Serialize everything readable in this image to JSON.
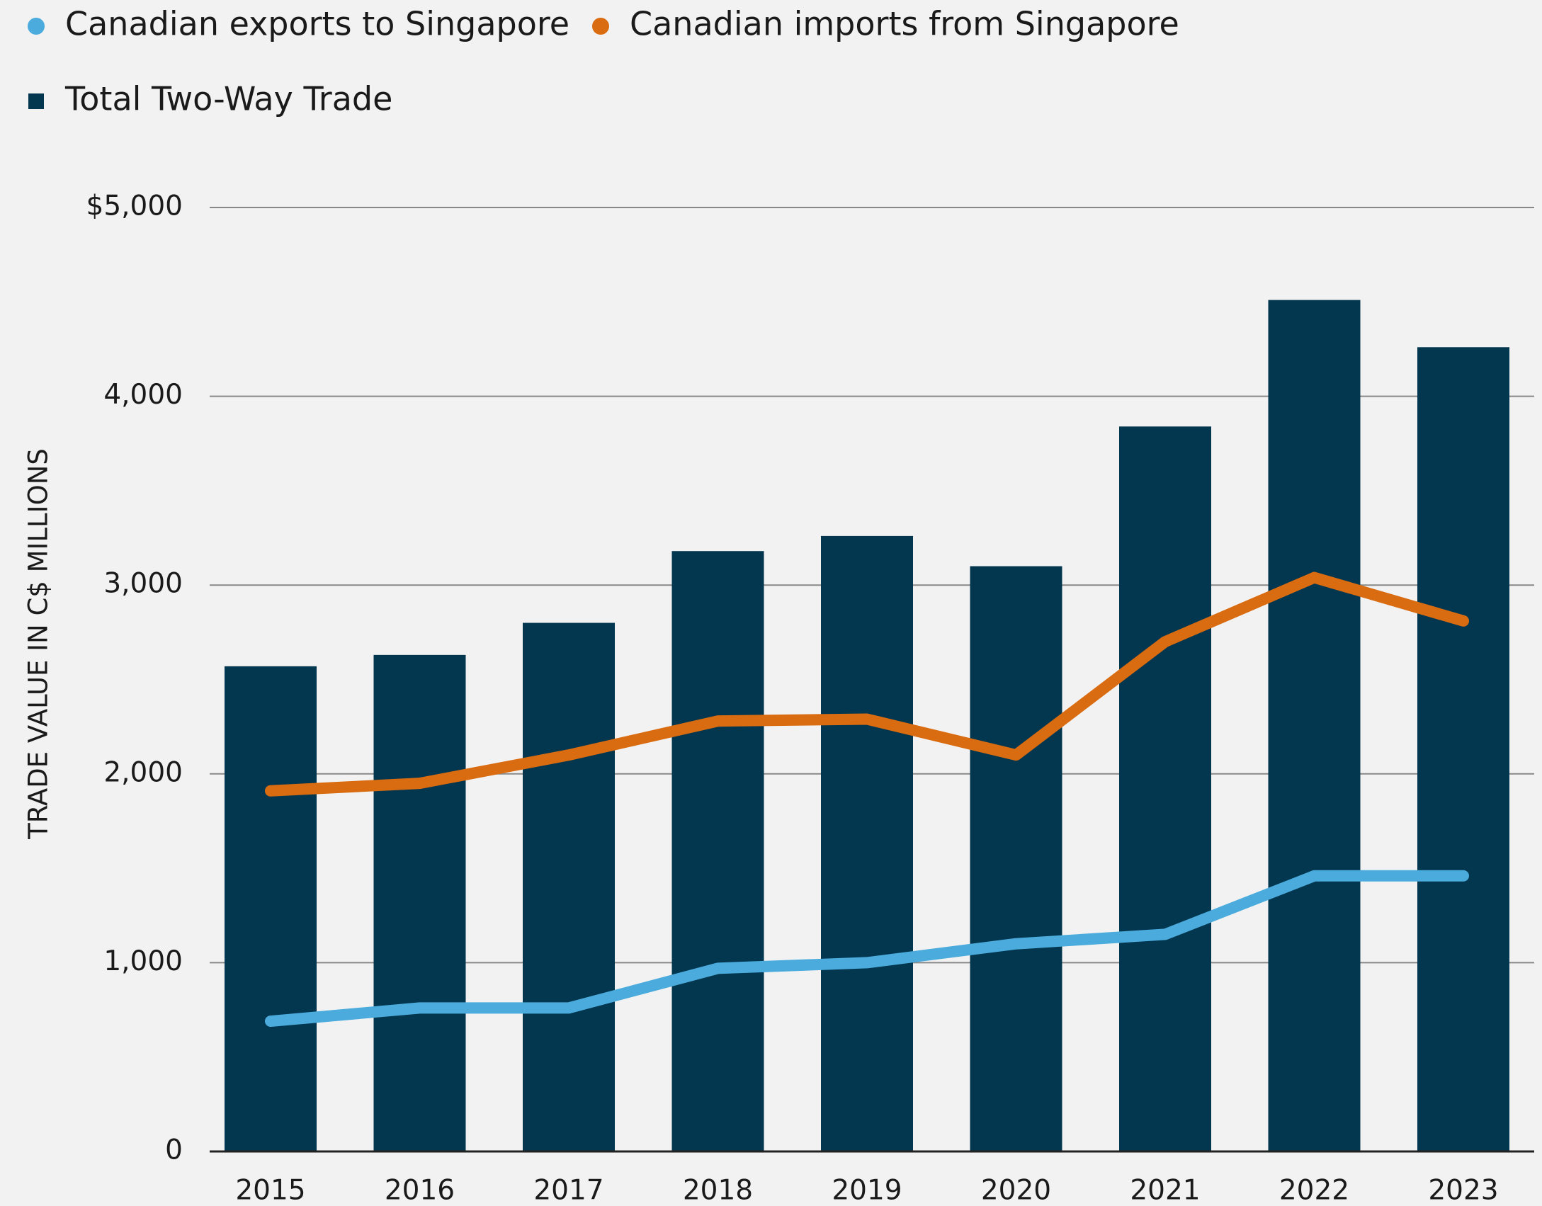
{
  "chart_data": {
    "type": "bar",
    "y_axis_label": "TRADE VALUE IN C$ MILLIONS",
    "categories": [
      "2015",
      "2016",
      "2017",
      "2018",
      "2019",
      "2020",
      "2021",
      "2022",
      "2023"
    ],
    "series": [
      {
        "name": "Canadian exports to Singapore",
        "type": "line",
        "color": "#4aabdc",
        "values": [
          690,
          760,
          760,
          970,
          1000,
          1100,
          1150,
          1460,
          1460
        ]
      },
      {
        "name": "Canadian imports from Singapore",
        "type": "line",
        "color": "#d96b10",
        "values": [
          1910,
          1950,
          2100,
          2280,
          2290,
          2100,
          2700,
          3040,
          2810
        ]
      },
      {
        "name": "Total Two-Way Trade",
        "type": "bar",
        "color": "#03364f",
        "values": [
          2570,
          2630,
          2800,
          3180,
          3260,
          3100,
          3840,
          4510,
          4260
        ]
      }
    ],
    "ylim": [
      0,
      5000
    ],
    "yticks": [
      0,
      {
        "value": 1000,
        "label": "1,000"
      },
      {
        "value": 2000,
        "label": "2,000"
      },
      {
        "value": 3000,
        "label": "3,000"
      },
      {
        "value": 4000,
        "label": "4,000"
      },
      {
        "value": 5000,
        "label": "$5,000"
      }
    ],
    "grid": true
  }
}
